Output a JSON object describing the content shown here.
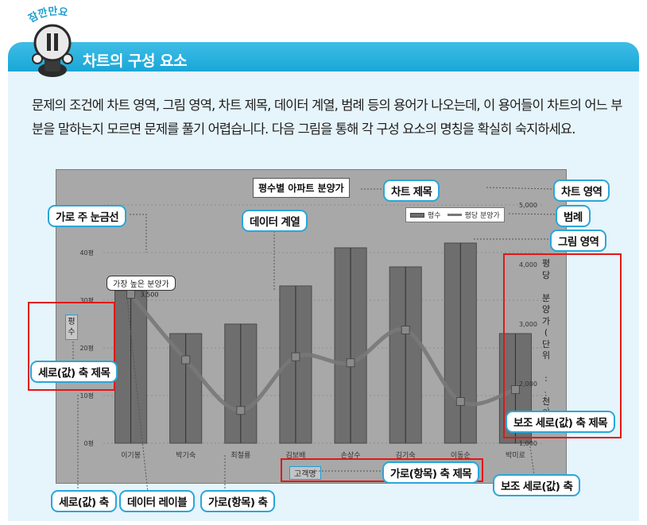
{
  "header": {
    "badge": "잠깐만요",
    "title": "차트의 구성 요소"
  },
  "paragraph": "문제의 조건에 차트 영역, 그림 영역, 차트 제목, 데이터 계열, 범례 등의 용어가 나오는데, 이 용어들이 차트의 어느 부분을 말하는지 모르면 문제를 풀기 어렵습니다. 다음 그림을 통해 각 구성 요소의 명칭을 확실히 숙지하세요.",
  "callouts": {
    "chart_title": "차트 제목",
    "chart_area": "차트 영역",
    "legend": "범례",
    "plot_area": "그림 영역",
    "major_gridline": "가로 주 눈금선",
    "data_series": "데이터 계열",
    "value_axis_title": "세로(값) 축 제목",
    "secondary_value_axis_title": "보조 세로(값) 축 제목",
    "category_axis_title": "가로(항목) 축 제목",
    "secondary_value_axis": "보조 세로(값) 축",
    "value_axis": "세로(값) 축",
    "data_label": "데이터 레이블",
    "category_axis": "가로(항목) 축"
  },
  "chart_data": {
    "type": "bar",
    "title": "평수별 아파트 분양가",
    "xlabel": "고객명",
    "ylabel": "평수",
    "y2label": "평당 분양가(단위 : 천원)",
    "categories": [
      "이기봉",
      "박기숙",
      "최철룡",
      "김보배",
      "손상수",
      "김기숙",
      "이동순",
      "박미로"
    ],
    "ylim": [
      0,
      50
    ],
    "y_ticks": [
      "0평",
      "10평",
      "20평",
      "30평",
      "40평"
    ],
    "y2lim": [
      1000,
      5000
    ],
    "y2_ticks": [
      "1,000",
      "2,000",
      "3,000",
      "4,000",
      "5,000"
    ],
    "grid": true,
    "legend_position": "top-right",
    "series": [
      {
        "name": "평수",
        "kind": "bar",
        "axis": "primary",
        "values": [
          32,
          23,
          25,
          33,
          41,
          37,
          42,
          23
        ],
        "color": "#6e6e6e"
      },
      {
        "name": "평당 분양가",
        "kind": "line",
        "axis": "secondary",
        "values": [
          3500,
          2400,
          1550,
          2450,
          2350,
          2900,
          1700,
          1900
        ],
        "color": "#7a7a7a"
      }
    ],
    "data_label": {
      "text": "가장 높은 분양가",
      "value": "3,500",
      "category": "이기봉"
    }
  }
}
